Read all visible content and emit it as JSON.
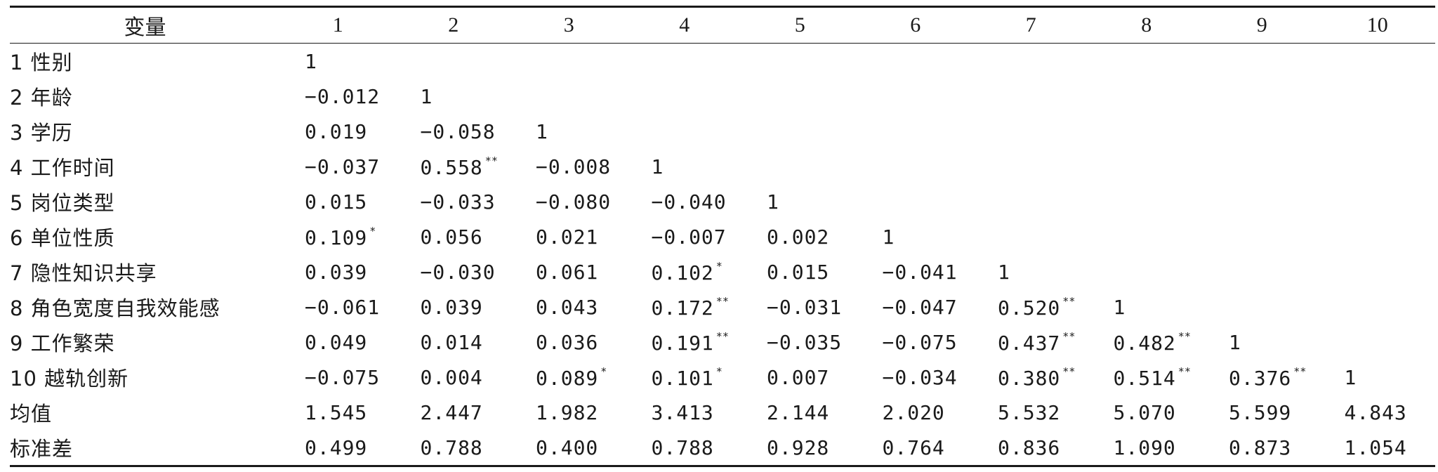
{
  "table": {
    "header": [
      "变量",
      "1",
      "2",
      "3",
      "4",
      "5",
      "6",
      "7",
      "8",
      "9",
      "10"
    ],
    "rows": [
      {
        "label": "1 性别",
        "cells": [
          "1",
          "",
          "",
          "",
          "",
          "",
          "",
          "",
          "",
          ""
        ]
      },
      {
        "label": "2 年龄",
        "cells": [
          "−0.012",
          "1",
          "",
          "",
          "",
          "",
          "",
          "",
          "",
          ""
        ]
      },
      {
        "label": "3 学历",
        "cells": [
          "0.019",
          "−0.058",
          "1",
          "",
          "",
          "",
          "",
          "",
          "",
          ""
        ]
      },
      {
        "label": "4 工作时间",
        "cells": [
          "−0.037",
          "0.558**",
          "−0.008",
          "1",
          "",
          "",
          "",
          "",
          "",
          ""
        ]
      },
      {
        "label": "5 岗位类型",
        "cells": [
          "0.015",
          "−0.033",
          "−0.080",
          "−0.040",
          "1",
          "",
          "",
          "",
          "",
          ""
        ]
      },
      {
        "label": "6 单位性质",
        "cells": [
          "0.109*",
          "0.056",
          "0.021",
          "−0.007",
          "0.002",
          "1",
          "",
          "",
          "",
          ""
        ]
      },
      {
        "label": "7 隐性知识共享",
        "cells": [
          "0.039",
          "−0.030",
          "0.061",
          "0.102*",
          "0.015",
          "−0.041",
          "1",
          "",
          "",
          ""
        ]
      },
      {
        "label": "8 角色宽度自我效能感",
        "cells": [
          "−0.061",
          "0.039",
          "0.043",
          "0.172**",
          "−0.031",
          "−0.047",
          "0.520**",
          "1",
          "",
          ""
        ]
      },
      {
        "label": "9 工作繁荣",
        "cells": [
          "0.049",
          "0.014",
          "0.036",
          "0.191**",
          "−0.035",
          "−0.075",
          "0.437**",
          "0.482**",
          "1",
          ""
        ]
      },
      {
        "label": "10 越轨创新",
        "cells": [
          "−0.075",
          "0.004",
          "0.089*",
          "0.101*",
          "0.007",
          "−0.034",
          "0.380**",
          "0.514**",
          "0.376**",
          "1"
        ]
      },
      {
        "label": "均值",
        "cells": [
          "1.545",
          "2.447",
          "1.982",
          "3.413",
          "2.144",
          "2.020",
          "5.532",
          "5.070",
          "5.599",
          "4.843"
        ]
      },
      {
        "label": "标准差",
        "cells": [
          "0.499",
          "0.788",
          "0.400",
          "0.788",
          "0.928",
          "0.764",
          "0.836",
          "1.090",
          "0.873",
          "1.054"
        ]
      }
    ]
  }
}
